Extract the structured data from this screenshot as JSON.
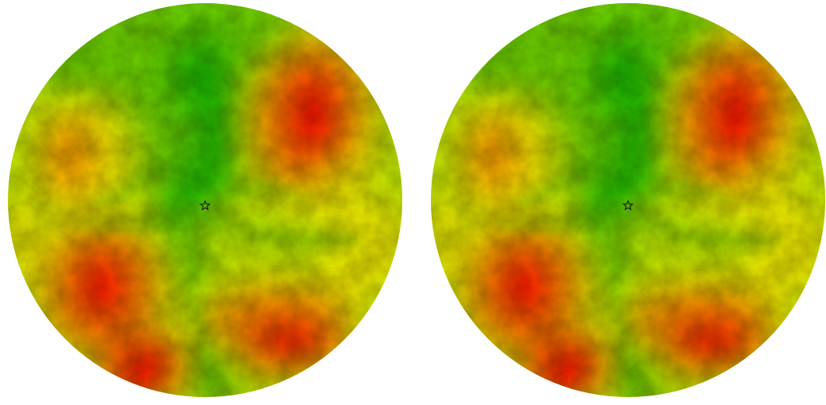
{
  "maps": [
    {
      "id": "left",
      "marker_icon": "star-icon"
    },
    {
      "id": "right",
      "marker_icon": "star-icon"
    }
  ],
  "legend_colors": {
    "low": "#1fbf00",
    "low_mid": "#6fd800",
    "mid": "#c6ee00",
    "mid_high": "#f6f000",
    "high_a": "#ff9a00",
    "high": "#ff0000",
    "drainage": "#4fb800"
  },
  "marker_color": "#222222"
}
